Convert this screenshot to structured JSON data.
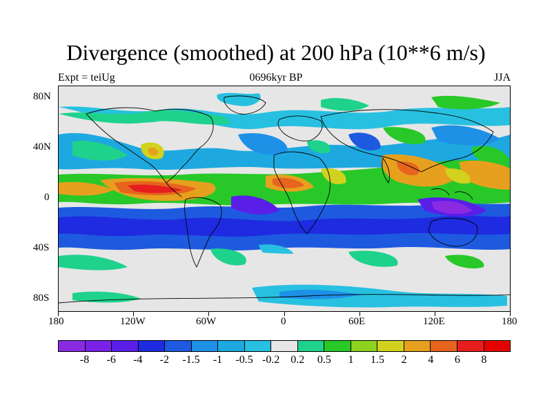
{
  "title": "Divergence (smoothed) at 200 hPa (10**6 m/s)",
  "left_string": "Expt = teiUg",
  "center_string": "0696kyr BP",
  "right_string": "JJA",
  "lat_labels": [
    "80N",
    "40N",
    "0",
    "40S",
    "80S"
  ],
  "lon_labels": [
    "180",
    "120W",
    "60W",
    "0",
    "60E",
    "120E",
    "180"
  ],
  "colorbar": {
    "labels": [
      "-8",
      "-6",
      "-4",
      "-2",
      "-1.5",
      "-1",
      "-0.5",
      "-0.2",
      "0.2",
      "0.5",
      "1",
      "1.5",
      "2",
      "4",
      "6",
      "8"
    ],
    "colors": [
      "#8a2be2",
      "#7a22e8",
      "#5a1ee8",
      "#1e2be0",
      "#1e5ae0",
      "#1e90e6",
      "#1ea8e0",
      "#28c0e0",
      "#e6e6e6",
      "#1ed28c",
      "#28c828",
      "#8cd21e",
      "#d2d21e",
      "#e6a01e",
      "#e6641e",
      "#e61e1e",
      "#e60000"
    ]
  },
  "colors": {
    "land_outline": "#000000",
    "neutral": "#e6e6e6"
  }
}
